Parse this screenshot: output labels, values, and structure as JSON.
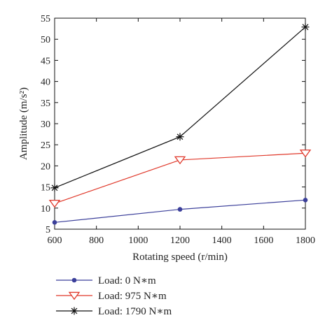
{
  "chart_data": {
    "type": "line",
    "xlabel": "Rotating speed (r/min)",
    "ylabel": "Amplitude (m/s²)",
    "x": [
      600,
      1200,
      1800
    ],
    "xlim": [
      600,
      1800
    ],
    "ylim": [
      5,
      55
    ],
    "xticks": [
      "600",
      "800",
      "1000",
      "1200",
      "1400",
      "1600",
      "1800"
    ],
    "yticks": [
      "5",
      "10",
      "15",
      "20",
      "25",
      "30",
      "35",
      "40",
      "45",
      "50",
      "55"
    ],
    "grid": false,
    "legend_position": "bottom-left-outside",
    "series": [
      {
        "name": "Load: 0 N∗m",
        "values": [
          6.6,
          9.7,
          11.9
        ],
        "color": "#3b3f9a",
        "marker": "dot"
      },
      {
        "name": "Load: 975 N∗m",
        "values": [
          11.1,
          21.4,
          23.0
        ],
        "color": "#e0392b",
        "marker": "triangle-down"
      },
      {
        "name": "Load: 1790 N∗m",
        "values": [
          14.8,
          26.9,
          52.9
        ],
        "color": "#111111",
        "marker": "asterisk"
      }
    ]
  }
}
